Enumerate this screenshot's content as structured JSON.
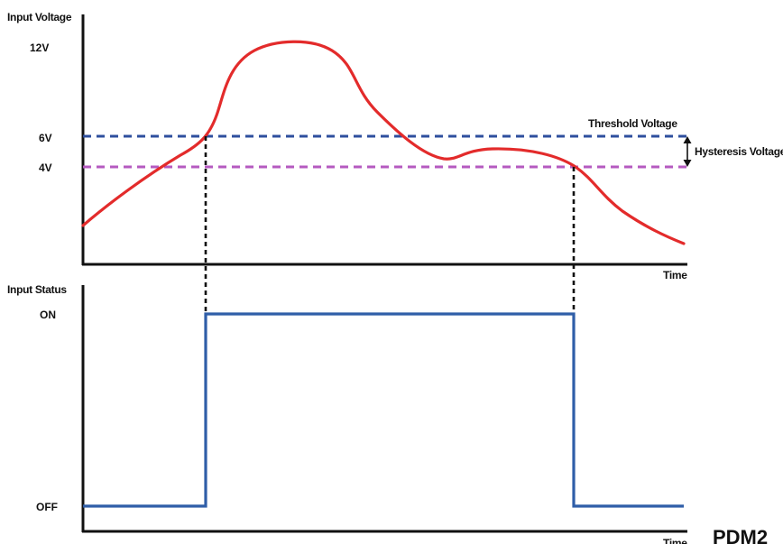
{
  "top_chart": {
    "ylabel": "Input Voltage",
    "xlabel": "Time",
    "ticks": [
      "12V",
      "6V",
      "4V"
    ],
    "threshold_label": "Threshold Voltage",
    "hysteresis_label": "Hysteresis Voltage"
  },
  "bottom_chart": {
    "ylabel": "Input Status",
    "xlabel": "Time",
    "ticks": [
      "ON",
      "OFF"
    ]
  },
  "watermark": "PDM2",
  "colors": {
    "voltage_curve": "#e32b2b",
    "threshold_line": "#2e4f9e",
    "hysteresis_line": "#b55ac0",
    "status_line": "#2f5ea8",
    "axis": "#111111"
  },
  "chart_data": [
    {
      "type": "line",
      "ylabel": "Input Voltage",
      "xlabel": "Time",
      "y_ticks": [
        {
          "label": "12V",
          "value": 12
        },
        {
          "label": "6V",
          "value": 6
        },
        {
          "label": "4V",
          "value": 4
        }
      ],
      "reference_lines": [
        {
          "label": "Threshold Voltage",
          "value": 6,
          "style": "dashed"
        },
        {
          "label": "",
          "value": 4,
          "style": "dashed"
        }
      ],
      "annotations": [
        "Threshold Voltage",
        "Hysteresis Voltage"
      ],
      "series": [
        {
          "values_description_free": true,
          "x": [
            0,
            5,
            10,
            15,
            20,
            25,
            30,
            35,
            40,
            45,
            50,
            55,
            60,
            65,
            70,
            75,
            80,
            85,
            90,
            95,
            100
          ],
          "y": [
            2.3,
            3.6,
            4.8,
            5.8,
            8.5,
            11.8,
            12.4,
            12.2,
            10.6,
            7.6,
            5.8,
            4.5,
            4.8,
            4.9,
            4.7,
            4.1,
            3.3,
            2.6,
            1.9,
            1.3,
            0.8
          ]
        }
      ],
      "ylim": [
        0,
        14
      ],
      "grid": false
    },
    {
      "type": "line",
      "ylabel": "Input Status",
      "xlabel": "Time",
      "y_ticks": [
        {
          "label": "ON",
          "value": 1
        },
        {
          "label": "OFF",
          "value": 0
        }
      ],
      "series": [
        {
          "x": [
            0,
            20.5,
            20.5,
            81.5,
            81.5,
            100
          ],
          "y": [
            0,
            0,
            1,
            1,
            0,
            0
          ]
        }
      ],
      "ylim": [
        0,
        1
      ],
      "grid": false
    }
  ]
}
